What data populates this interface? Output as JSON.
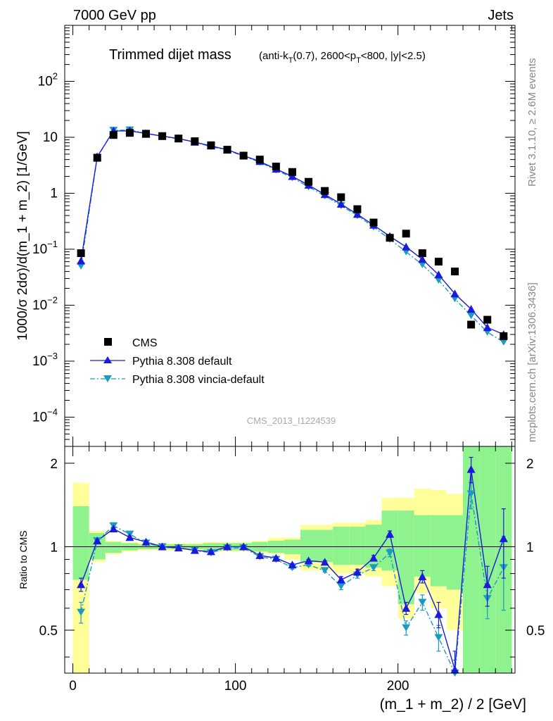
{
  "header": {
    "left": "7000 GeV pp",
    "right": "Jets",
    "side_top": "Rivet 3.1.10, ≥ 2.6M events",
    "side_bottom": "mcplots.cern.ch [arXiv:1306.3436]",
    "watermark": "CMS_2013_I1224539"
  },
  "colors": {
    "data": "#000000",
    "pythia_default": "#1a1adc",
    "pythia_vincia": "#1a9bbf",
    "band_inner": "#8ef28e",
    "band_outer": "#ffff99"
  },
  "chart_data": [
    {
      "type": "scatter",
      "title_main": "Trimmed dijet mass",
      "title_sub": "(anti-k_T(0.7), 2600<p_T<800, |y|<2.5)",
      "ylabel": "1000/σ 2dσ)/d(m_1 + m_2) [1/GeV]",
      "yscale": "log",
      "ylim": [
        3e-05,
        1000
      ],
      "xlim": [
        -5,
        272
      ],
      "y_tick_labels": [
        "10^-4",
        "10^-3",
        "10^-2",
        "10^-1",
        "1",
        "10",
        "10^2"
      ],
      "legend": {
        "placement": "bottom-left",
        "entries": [
          "CMS",
          "Pythia 8.308 default",
          "Pythia 8.308 vincia-default"
        ]
      },
      "x": [
        5,
        15,
        25,
        35,
        45,
        55,
        65,
        75,
        85,
        95,
        105,
        115,
        125,
        135,
        145,
        155,
        165,
        175,
        185,
        195,
        205,
        215,
        225,
        235,
        245,
        255,
        265
      ],
      "series": [
        {
          "name": "CMS",
          "values": [
            0.085,
            4.3,
            11,
            12,
            11.5,
            10.5,
            9.5,
            8.5,
            7.2,
            6,
            4.7,
            4,
            3,
            2.4,
            1.6,
            1.1,
            0.85,
            0.52,
            0.3,
            0.16,
            0.19,
            0.085,
            0.06,
            0.04,
            0.0045,
            0.0055,
            0.0028
          ]
        },
        {
          "name": "Pythia 8.308 default",
          "values": [
            0.062,
            4.5,
            13,
            13,
            11.7,
            10.5,
            9.5,
            8.2,
            7.0,
            6.0,
            4.7,
            3.7,
            2.7,
            2.0,
            1.4,
            0.95,
            0.64,
            0.42,
            0.27,
            0.17,
            0.11,
            0.066,
            0.035,
            0.016,
            0.0085,
            0.004,
            0.003
          ]
        },
        {
          "name": "Pythia 8.308 vincia-default",
          "values": [
            0.05,
            4.4,
            13.3,
            13.5,
            11.8,
            10.4,
            9.4,
            8.2,
            6.8,
            5.9,
            4.6,
            3.6,
            2.6,
            1.9,
            1.3,
            0.9,
            0.6,
            0.4,
            0.25,
            0.15,
            0.09,
            0.053,
            0.028,
            0.013,
            0.0065,
            0.0033,
            0.0022
          ]
        }
      ]
    },
    {
      "type": "line",
      "ylabel": "Ratio to CMS",
      "xlabel": "(m_1 + m_2) / 2 [GeV]",
      "ylim": [
        0.35,
        2.3
      ],
      "xlim": [
        -5,
        272
      ],
      "x_tick_labels": [
        "0",
        "100",
        "200"
      ],
      "y_tick_labels": [
        "0.5",
        "1",
        "2"
      ],
      "x": [
        5,
        15,
        25,
        35,
        45,
        55,
        65,
        75,
        85,
        95,
        105,
        115,
        125,
        135,
        145,
        155,
        165,
        175,
        185,
        195,
        205,
        215,
        225,
        235,
        245,
        255,
        265
      ],
      "series": [
        {
          "name": "Pythia 8.308 default",
          "values": [
            0.73,
            1.05,
            1.16,
            1.08,
            1.04,
            1.0,
            0.99,
            0.97,
            0.96,
            1.0,
            1.0,
            0.93,
            0.91,
            0.86,
            0.89,
            0.88,
            0.76,
            0.81,
            0.91,
            1.11,
            0.6,
            0.78,
            0.57,
            0.36,
            1.9,
            0.73,
            1.07
          ]
        },
        {
          "name": "Pythia 8.308 vincia-default",
          "values": [
            0.58,
            1.05,
            1.19,
            1.11,
            1.03,
            1.0,
            0.99,
            0.97,
            0.95,
            0.99,
            0.99,
            0.92,
            0.9,
            0.84,
            0.86,
            0.82,
            0.72,
            0.79,
            0.84,
            0.95,
            0.51,
            0.63,
            0.47,
            0.33,
            1.55,
            0.65,
            0.84
          ]
        }
      ],
      "errors": [
        {
          "name": "Pythia 8.308 default",
          "values": [
            0.04,
            0.01,
            0.01,
            0.01,
            0.01,
            0.01,
            0.01,
            0.01,
            0.01,
            0.01,
            0.01,
            0.01,
            0.01,
            0.01,
            0.01,
            0.01,
            0.02,
            0.02,
            0.02,
            0.03,
            0.03,
            0.04,
            0.06,
            0.06,
            0.2,
            0.12,
            0.3
          ]
        },
        {
          "name": "Pythia 8.308 vincia-default",
          "values": [
            0.05,
            0.01,
            0.01,
            0.01,
            0.01,
            0.01,
            0.01,
            0.01,
            0.01,
            0.01,
            0.01,
            0.01,
            0.01,
            0.01,
            0.01,
            0.01,
            0.02,
            0.02,
            0.02,
            0.03,
            0.03,
            0.04,
            0.05,
            0.06,
            0.18,
            0.1,
            0.25
          ]
        }
      ],
      "band_inner": [
        [
          0.76,
          1.4
        ],
        [
          0.9,
          1.12
        ],
        [
          0.95,
          1.04
        ],
        [
          0.97,
          1.03
        ],
        [
          0.98,
          1.02
        ],
        [
          0.98,
          1.02
        ],
        [
          0.98,
          1.02
        ],
        [
          0.98,
          1.02
        ],
        [
          0.97,
          1.03
        ],
        [
          0.97,
          1.03
        ],
        [
          0.97,
          1.03
        ],
        [
          0.96,
          1.04
        ],
        [
          0.95,
          1.05
        ],
        [
          0.94,
          1.06
        ],
        [
          0.88,
          1.15
        ],
        [
          0.88,
          1.15
        ],
        [
          0.86,
          1.18
        ],
        [
          0.86,
          1.18
        ],
        [
          0.84,
          1.2
        ],
        [
          0.82,
          1.35
        ],
        [
          0.62,
          1.35
        ],
        [
          0.78,
          1.3
        ],
        [
          0.72,
          1.3
        ],
        [
          0.7,
          1.3
        ],
        [
          0.3,
          2.5
        ],
        [
          0.3,
          2.5
        ],
        [
          0.3,
          2.5
        ]
      ],
      "band_outer": [
        [
          0.3,
          1.7
        ],
        [
          0.88,
          1.14
        ],
        [
          0.94,
          1.05
        ],
        [
          0.96,
          1.04
        ],
        [
          0.97,
          1.03
        ],
        [
          0.97,
          1.03
        ],
        [
          0.97,
          1.03
        ],
        [
          0.97,
          1.03
        ],
        [
          0.96,
          1.04
        ],
        [
          0.96,
          1.04
        ],
        [
          0.96,
          1.04
        ],
        [
          0.95,
          1.05
        ],
        [
          0.94,
          1.08
        ],
        [
          0.9,
          1.08
        ],
        [
          0.82,
          1.2
        ],
        [
          0.82,
          1.2
        ],
        [
          0.8,
          1.22
        ],
        [
          0.8,
          1.22
        ],
        [
          0.78,
          1.25
        ],
        [
          0.72,
          1.5
        ],
        [
          0.55,
          1.5
        ],
        [
          0.68,
          1.62
        ],
        [
          0.6,
          1.6
        ],
        [
          0.5,
          1.55
        ],
        [
          0.3,
          2.5
        ],
        [
          0.3,
          2.5
        ],
        [
          0.3,
          2.5
        ]
      ]
    }
  ]
}
